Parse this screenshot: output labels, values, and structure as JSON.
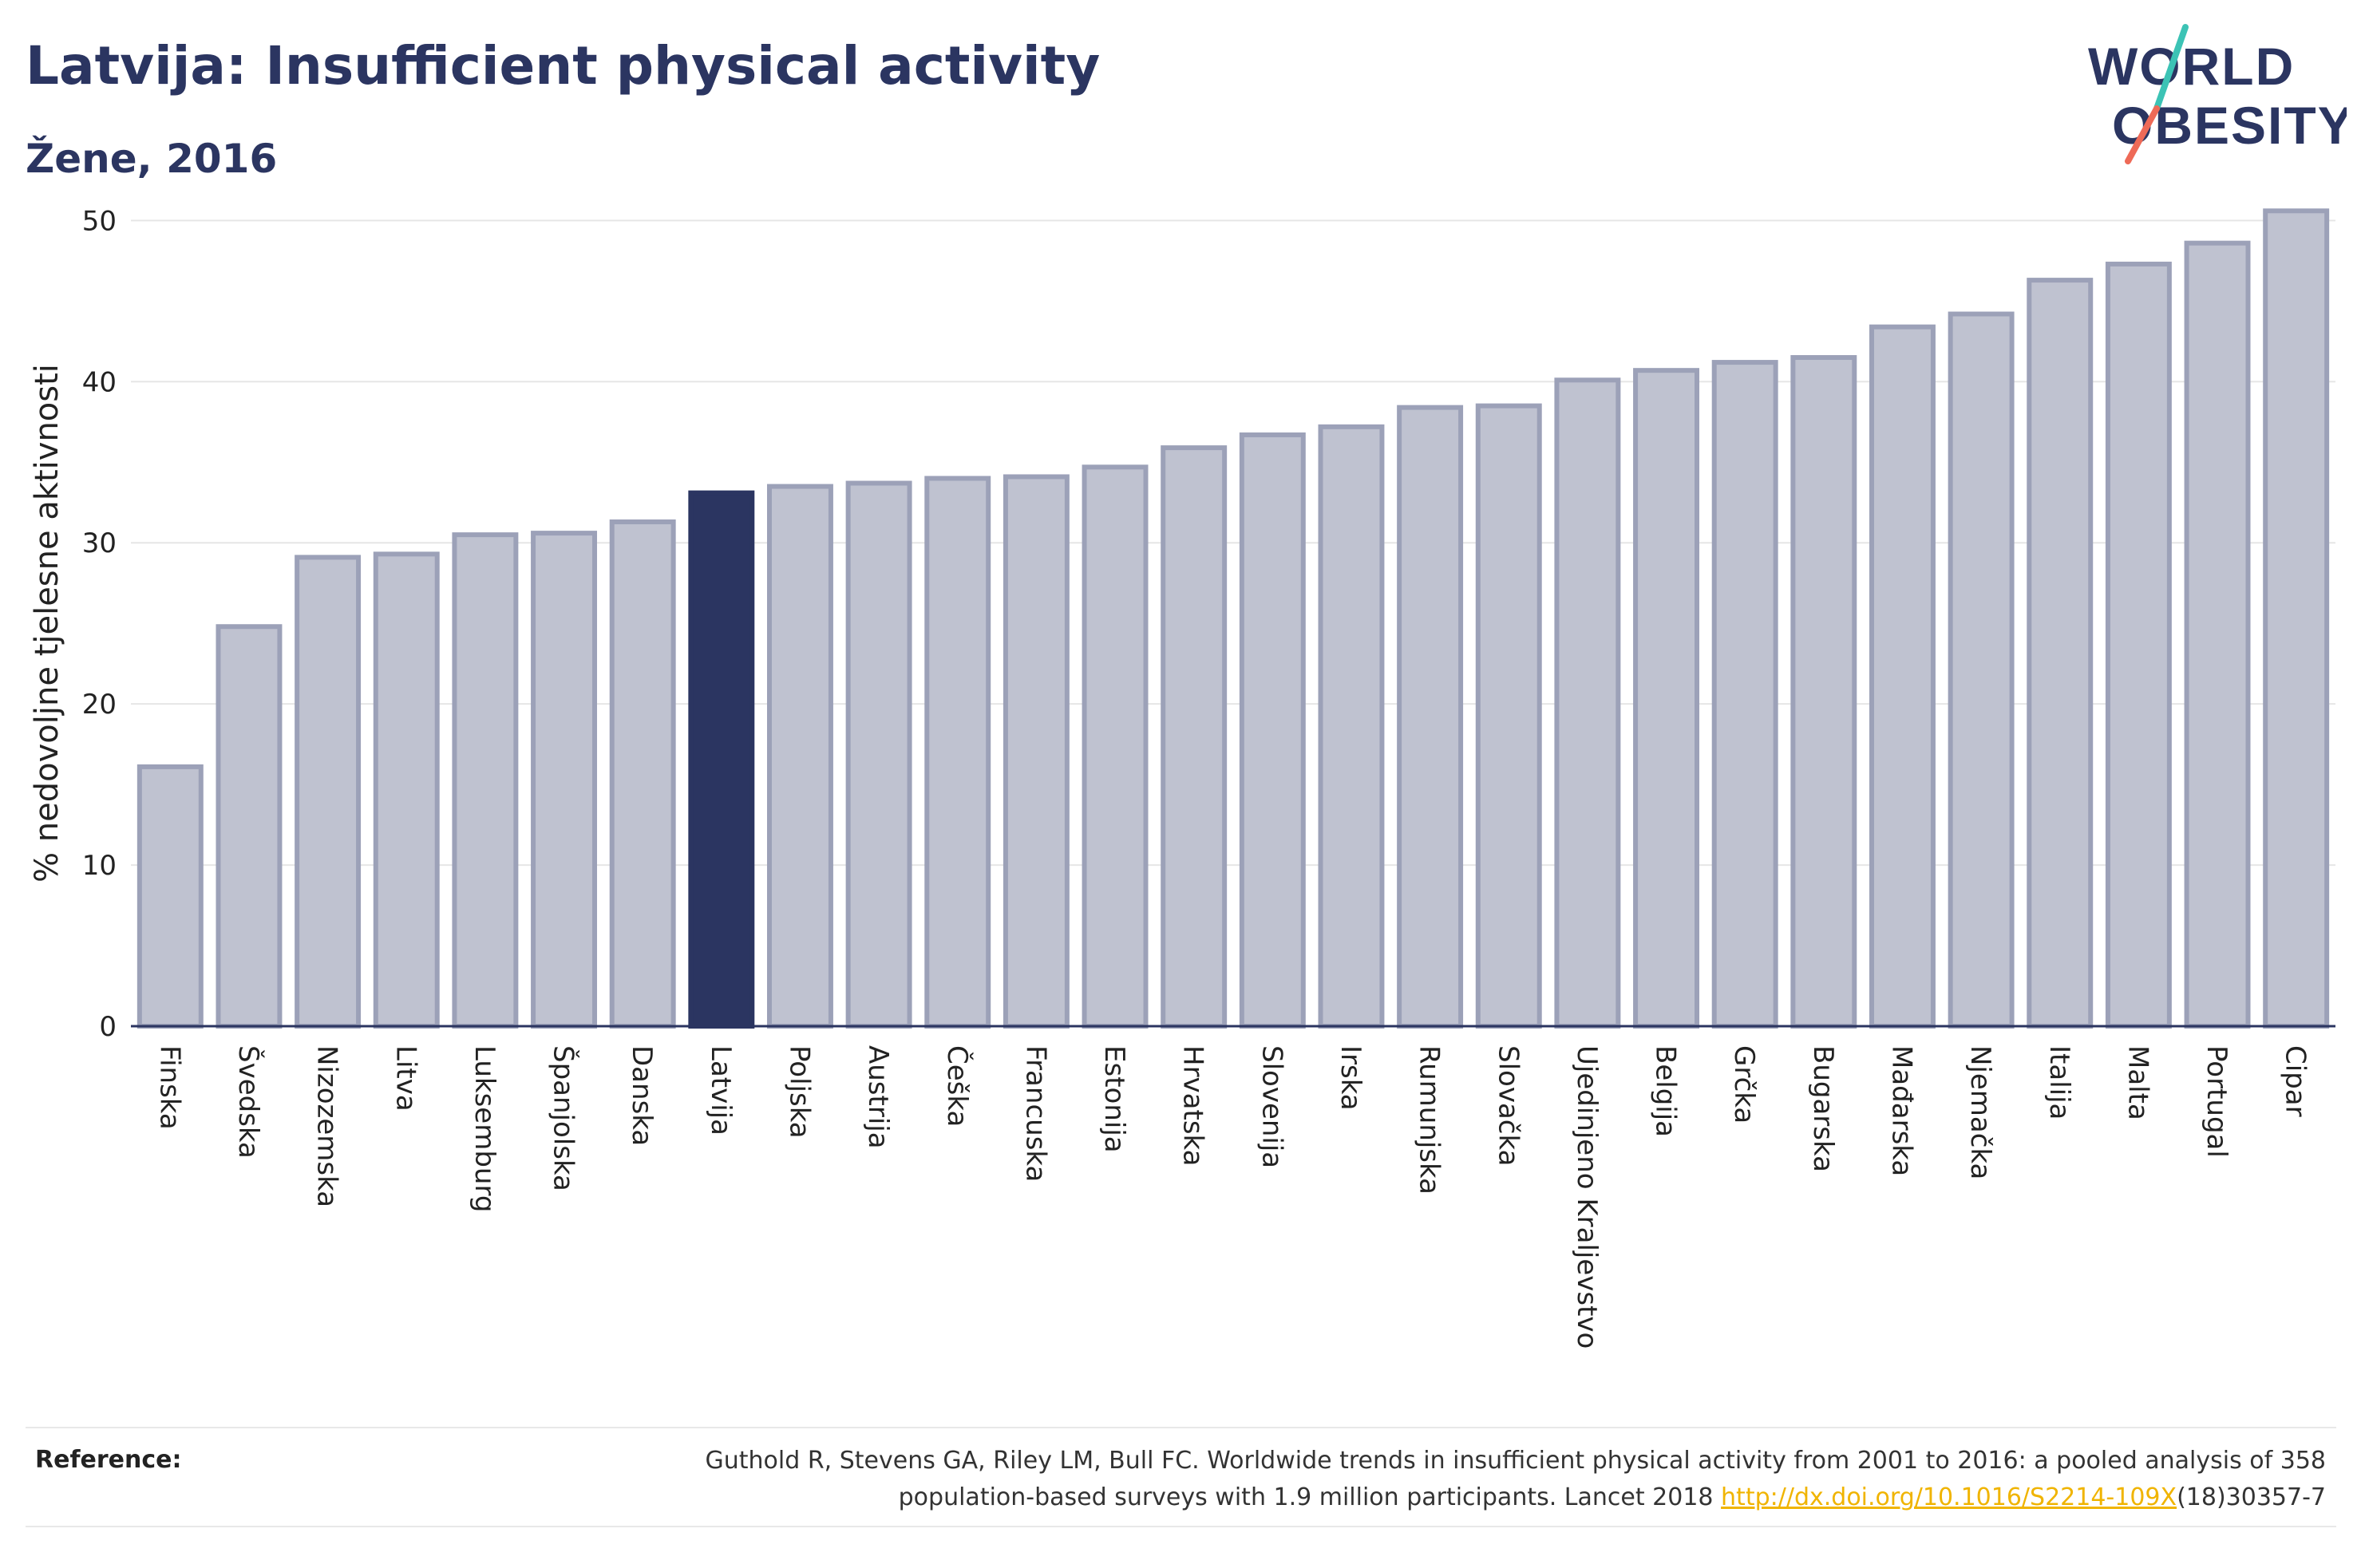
{
  "header": {
    "title": "Latvija: Insufficient physical activity",
    "subtitle": "Žene, 2016"
  },
  "logo": {
    "line1": "WORLD",
    "line2": "OBESITY",
    "colors": {
      "text": "#2b3561",
      "slash_top": "#3cc3b5",
      "slash_bottom": "#ee6a57"
    }
  },
  "chart_data": {
    "type": "bar",
    "title": "Latvija: Insufficient physical activity",
    "subtitle": "Žene, 2016",
    "xlabel": "",
    "ylabel": "% nedovoljne tjelesne aktivnosti",
    "ylim": [
      0,
      52
    ],
    "yticks": [
      0,
      10,
      20,
      30,
      40,
      50
    ],
    "grid": true,
    "highlight": "Latvija",
    "colors": {
      "bar": "#bfc2d0",
      "bar_edge": "#9ca1b8",
      "highlight": "#2b3561",
      "grid": "#e6e6e6",
      "axis": "#2b3561"
    },
    "categories": [
      "Finska",
      "Švedska",
      "Nizozemska",
      "Litva",
      "Luksemburg",
      "Španjolska",
      "Danska",
      "Latvija",
      "Poljska",
      "Austrija",
      "Češka",
      "Francuska",
      "Estonija",
      "Hrvatska",
      "Slovenija",
      "Irska",
      "Rumunjska",
      "Slovačka",
      "Ujedinjeno Kraljevstvo",
      "Belgija",
      "Grčka",
      "Bugarska",
      "Mađarska",
      "Njemačka",
      "Italija",
      "Malta",
      "Portugal",
      "Cipar"
    ],
    "values": [
      16.1,
      24.8,
      29.1,
      29.3,
      30.5,
      30.6,
      31.3,
      33.1,
      33.5,
      33.7,
      34.0,
      34.1,
      34.7,
      35.9,
      36.7,
      37.2,
      38.4,
      38.5,
      40.1,
      40.7,
      41.2,
      41.5,
      43.4,
      44.2,
      46.3,
      47.3,
      48.6,
      50.6
    ]
  },
  "reference": {
    "label": "Reference:",
    "text_line1": "Guthold R, Stevens GA, Riley LM, Bull FC. Worldwide trends in insufficient physical activity from 2001 to 2016: a pooled analysis of 358",
    "text_line2_before": "population-based surveys with 1.9 million participants. Lancet 2018 ",
    "link": "http://dx.doi.org/10.1016/S2214-109X",
    "text_line2_after": "(18)30357-7"
  }
}
